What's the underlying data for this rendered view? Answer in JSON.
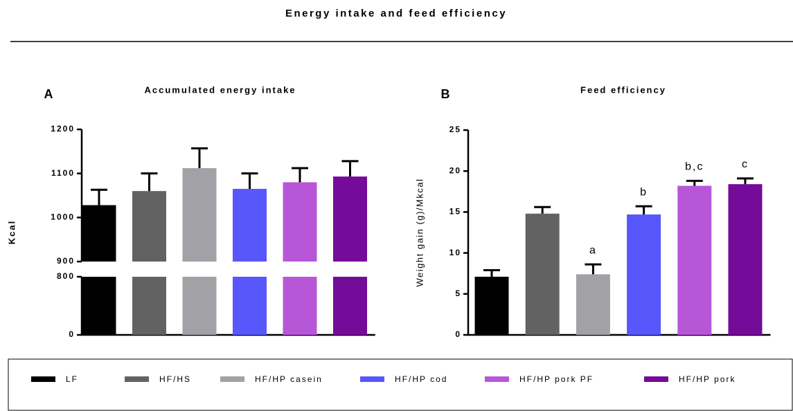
{
  "title": "Energy intake and feed efficiency",
  "chart_data": [
    {
      "type": "bar",
      "panel": "A",
      "title": "Accumulated energy intake",
      "ylabel": "Kcal",
      "categories": [
        "LF",
        "HF/HS",
        "HF/HP casein",
        "HF/HP cod",
        "HF/HP pork PF",
        "HF/HP pork"
      ],
      "colors": [
        "#000000",
        "#626262",
        "#a2a1a6",
        "#5757fb",
        "#b757d8",
        "#750b99"
      ],
      "values": [
        1028,
        1060,
        1112,
        1065,
        1080,
        1093
      ],
      "errors": [
        35,
        40,
        45,
        35,
        32,
        35
      ],
      "segments": [
        {
          "ylim": [
            0,
            800
          ]
        },
        {
          "ylim": [
            900,
            1200
          ]
        }
      ],
      "yticks": [
        0,
        800,
        900,
        1000,
        1100,
        1200
      ]
    },
    {
      "type": "bar",
      "panel": "B",
      "title": "Feed efficiency",
      "ylabel": "Weight gain (g)/Mkcal",
      "values": [
        7.1,
        14.8,
        7.4,
        14.7,
        18.2,
        18.4
      ],
      "errors": [
        0.8,
        0.8,
        1.2,
        1.0,
        0.6,
        0.7
      ],
      "annotations": [
        null,
        null,
        "a",
        "b",
        "b,c",
        "c"
      ],
      "ylim": [
        0,
        25
      ],
      "yticks": [
        0,
        5,
        10,
        15,
        20,
        25
      ]
    }
  ]
}
